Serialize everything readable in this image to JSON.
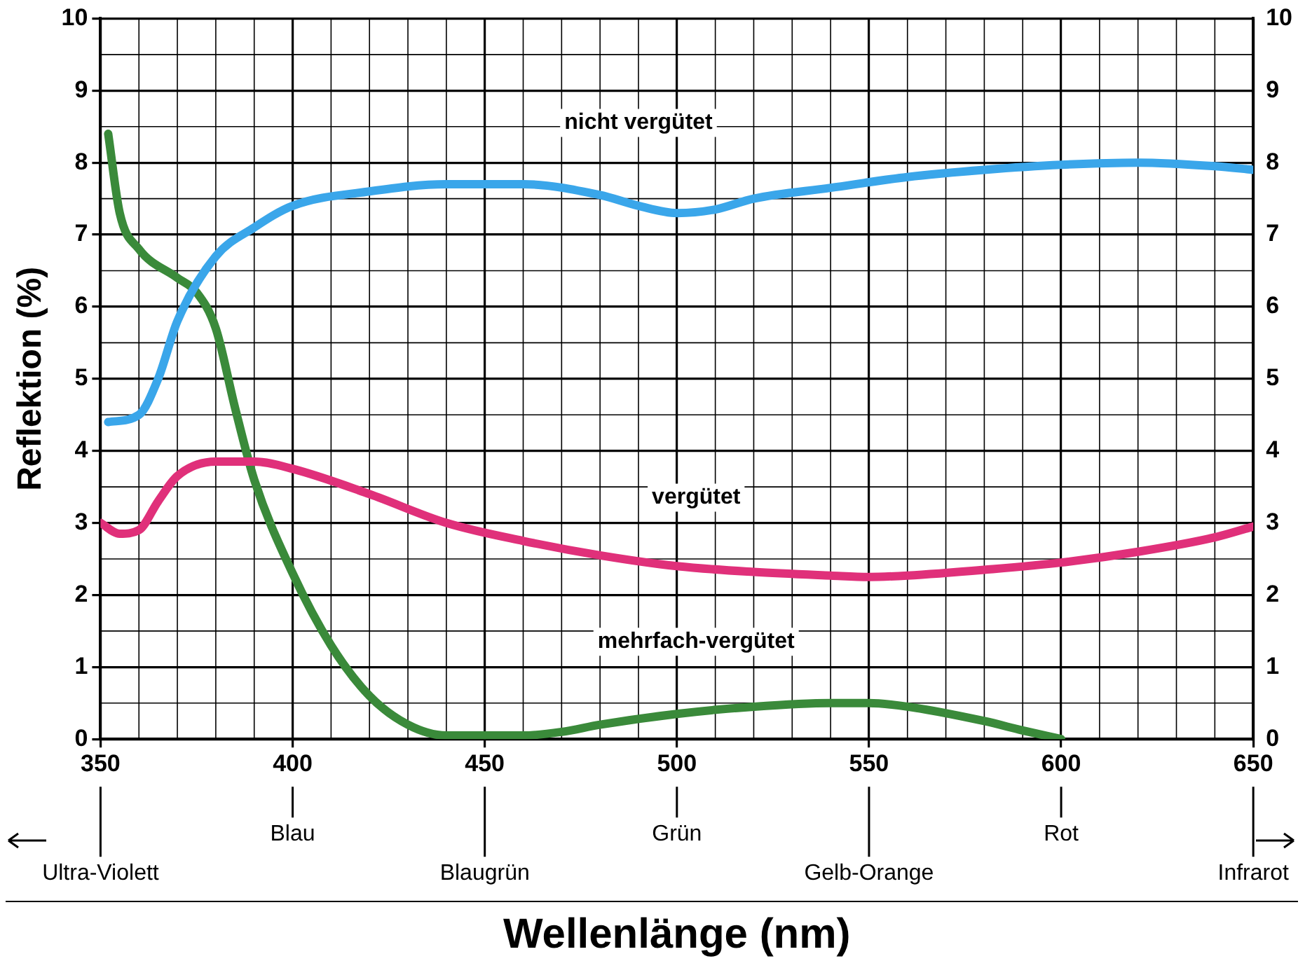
{
  "chart_data": {
    "type": "line",
    "ylabel": "Reflektion (%)",
    "xlabel": "Wellenlänge (nm)",
    "xlim": [
      350,
      650
    ],
    "xticks": [
      350,
      400,
      450,
      500,
      550,
      600,
      650
    ],
    "ylim": [
      0,
      10
    ],
    "yticks": [
      0,
      1,
      2,
      3,
      4,
      5,
      6,
      7,
      8,
      9,
      10
    ],
    "y2lim": [
      0,
      10
    ],
    "y2ticks": [
      0,
      1,
      2,
      3,
      4,
      5,
      6,
      7,
      8,
      9,
      10
    ],
    "grid": true,
    "legend": false,
    "marker": "none",
    "line_style": "solid",
    "series": [
      {
        "name": "nicht vergütet",
        "color": "#3aa6ea",
        "x": [
          352,
          360,
          365,
          370,
          380,
          390,
          400,
          420,
          440,
          460,
          480,
          490,
          500,
          510,
          520,
          540,
          560,
          580,
          600,
          620,
          640,
          650
        ],
        "values": [
          4.4,
          4.5,
          5.0,
          5.8,
          6.7,
          7.1,
          7.4,
          7.6,
          7.7,
          7.7,
          7.55,
          7.4,
          7.3,
          7.35,
          7.5,
          7.65,
          7.8,
          7.9,
          7.97,
          8.0,
          7.95,
          7.9
        ]
      },
      {
        "name": "vergütet",
        "color": "#e0307a",
        "x": [
          350,
          355,
          360,
          365,
          370,
          380,
          390,
          400,
          420,
          440,
          460,
          480,
          500,
          520,
          540,
          550,
          560,
          580,
          600,
          620,
          640,
          650
        ],
        "values": [
          3.0,
          2.85,
          2.9,
          3.3,
          3.65,
          3.85,
          3.85,
          3.75,
          3.4,
          3.0,
          2.75,
          2.55,
          2.4,
          2.32,
          2.27,
          2.25,
          2.27,
          2.35,
          2.45,
          2.6,
          2.8,
          2.95
        ]
      },
      {
        "name": "mehrfach-vergütet",
        "color": "#3a8a3a",
        "x": [
          352,
          355,
          360,
          370,
          375,
          380,
          385,
          390,
          400,
          410,
          420,
          430,
          440,
          450,
          460,
          470,
          480,
          500,
          520,
          540,
          550,
          560,
          580,
          590,
          600
        ],
        "values": [
          8.4,
          7.3,
          6.8,
          6.4,
          6.2,
          5.7,
          4.6,
          3.6,
          2.3,
          1.3,
          0.6,
          0.2,
          0.05,
          0.05,
          0.05,
          0.1,
          0.2,
          0.35,
          0.45,
          0.5,
          0.5,
          0.45,
          0.25,
          0.12,
          0
        ]
      }
    ],
    "annotations": [
      {
        "text": "Ultra-Violett",
        "x": 350
      },
      {
        "text": "Blau",
        "x": 400
      },
      {
        "text": "Blaugrün",
        "x": 450
      },
      {
        "text": "Grün",
        "x": 500
      },
      {
        "text": "Gelb-Orange",
        "x": 550
      },
      {
        "text": "Rot",
        "x": 600
      },
      {
        "text": "Infrarot",
        "x": 650
      }
    ]
  }
}
